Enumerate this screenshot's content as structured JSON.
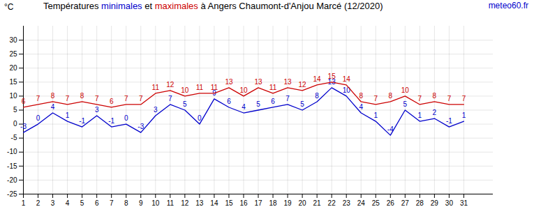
{
  "chart_data": {
    "type": "line",
    "title": "Températures minimales et maximales à Angers Chaumont-d'Anjou Marcé (12/2020)",
    "ylabel": "°C",
    "source": "meteo60.fr",
    "x": [
      1,
      2,
      3,
      4,
      5,
      6,
      7,
      8,
      9,
      10,
      11,
      12,
      13,
      14,
      15,
      16,
      17,
      18,
      19,
      20,
      21,
      22,
      23,
      24,
      25,
      26,
      27,
      28,
      29,
      30,
      31
    ],
    "series": [
      {
        "name": "minimales",
        "color": "#0000cc",
        "values": [
          -3,
          0,
          4,
          1,
          -1,
          3,
          -1,
          0,
          -3,
          3,
          7,
          5,
          0,
          9,
          6,
          4,
          5,
          6,
          7,
          5,
          8,
          13,
          10,
          4,
          1,
          -4,
          5,
          1,
          2,
          -1,
          1
        ]
      },
      {
        "name": "maximales",
        "color": "#cc0000",
        "values": [
          6,
          7,
          8,
          7,
          8,
          7,
          6,
          7,
          7,
          11,
          12,
          10,
          11,
          11,
          13,
          10,
          13,
          11,
          13,
          12,
          14,
          15,
          14,
          8,
          7,
          8,
          10,
          7,
          8,
          7,
          7
        ]
      }
    ],
    "xlim": [
      1,
      33
    ],
    "xticks": [
      1,
      2,
      3,
      4,
      5,
      6,
      7,
      8,
      9,
      10,
      11,
      12,
      13,
      14,
      15,
      16,
      17,
      18,
      19,
      20,
      21,
      22,
      23,
      24,
      25,
      26,
      27,
      28,
      29,
      30,
      31
    ],
    "ylim": [
      -25,
      35
    ],
    "yticks": [
      -25,
      -20,
      -15,
      -10,
      -5,
      0,
      5,
      10,
      15,
      20,
      25,
      30
    ],
    "grid": true,
    "data_labels": true
  }
}
